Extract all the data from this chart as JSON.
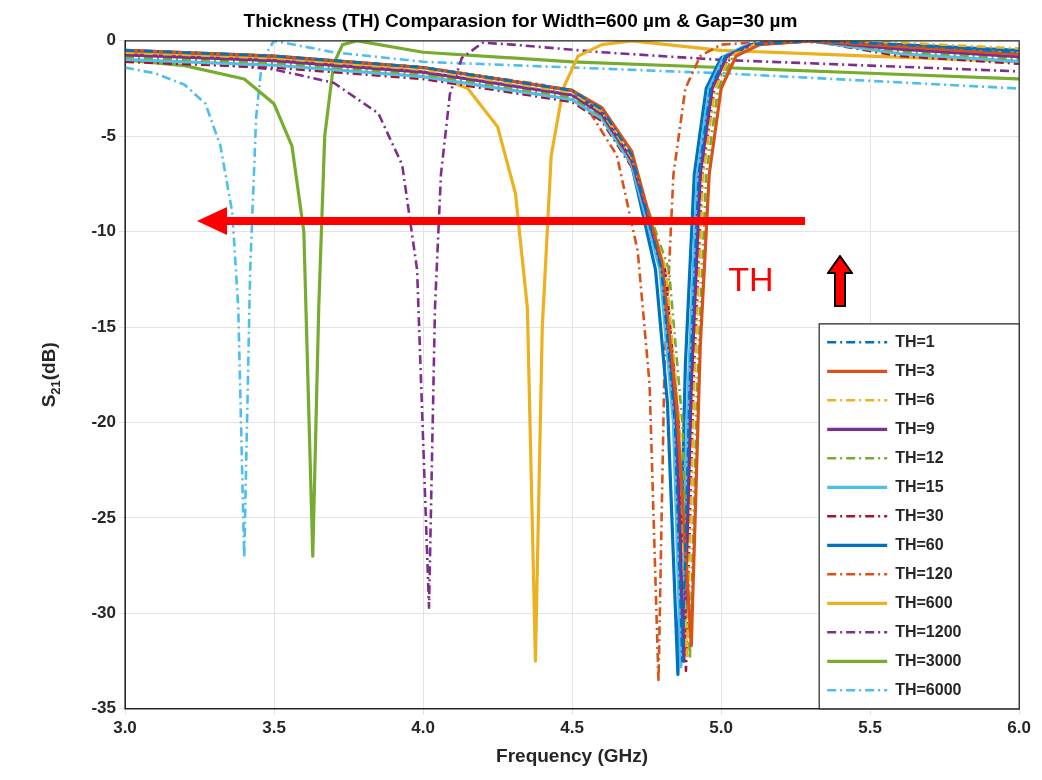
{
  "chart_data": {
    "type": "line",
    "title": "Thickness (TH) Comparasion for Width=600 µm & Gap=30 µm",
    "xlabel": "Frequency (GHz)",
    "ylabel": "S$_{21}$(dB)",
    "xlim": [
      3,
      6
    ],
    "xticks": [
      {
        "value": 3,
        "label": "3.0"
      },
      {
        "value": 3.5,
        "label": "3.5"
      },
      {
        "value": 4,
        "label": "4.0"
      },
      {
        "value": 4.5,
        "label": "4.5"
      },
      {
        "value": 5,
        "label": "5.0"
      },
      {
        "value": 5.5,
        "label": "5.5"
      },
      {
        "value": 6,
        "label": "6.0"
      }
    ],
    "ylim": [
      -35,
      0
    ],
    "yticks": [
      -35,
      -30,
      -25,
      -20,
      -15,
      -10,
      -5,
      0
    ],
    "grid": true,
    "legend": "bottom right",
    "marker": "none",
    "annotations": [
      "TH"
    ],
    "series": [
      {
        "name": "TH=1",
        "color": "#0072bd",
        "line_style": "dashed",
        "x": [
          3.0,
          3.5,
          4.0,
          4.5,
          4.6,
          4.7,
          4.8,
          4.845,
          4.87,
          4.895,
          4.925,
          4.965,
          5.015,
          5.095,
          5.3,
          5.6,
          6.0
        ],
        "values": [
          -0.5,
          -0.8,
          -1.4,
          -2.6,
          -3.6,
          -6,
          -12,
          -20,
          -32.5,
          -18,
          -7,
          -2.5,
          -0.8,
          -0.2,
          0,
          -0.2,
          -0.6
        ]
      },
      {
        "name": "TH=3",
        "color": "#d95319",
        "line_style": "solid",
        "x": [
          3.0,
          3.5,
          4.0,
          4.5,
          4.6,
          4.7,
          4.8,
          4.85,
          4.9,
          4.93,
          4.96,
          5.0,
          5.05,
          5.13,
          5.3,
          5.6,
          6.0
        ],
        "values": [
          -0.5,
          -0.8,
          -1.4,
          -2.6,
          -3.5,
          -5.8,
          -11.5,
          -19,
          -31.7,
          -16,
          -7,
          -2.5,
          -0.8,
          -0.2,
          0,
          -0.3,
          -0.7
        ]
      },
      {
        "name": "TH=6",
        "color": "#edb120",
        "line_style": "dashed",
        "x": [
          3.0,
          3.5,
          4.0,
          4.5,
          4.6,
          4.7,
          4.815,
          4.86,
          4.885,
          4.91,
          4.94,
          4.98,
          5.03,
          5.11,
          5.3,
          5.6,
          6.0
        ],
        "values": [
          -0.62,
          -0.92,
          -1.52,
          -2.72,
          -3.72,
          -6.12,
          -12,
          -20,
          -32.3,
          -18,
          -7,
          -2.5,
          -0.8,
          -0.2,
          0,
          -0.1,
          -0.4
        ]
      },
      {
        "name": "TH=9",
        "color": "#7e2f8e",
        "line_style": "solid",
        "x": [
          3.0,
          3.5,
          4.0,
          4.5,
          4.6,
          4.7,
          4.805,
          4.85,
          4.875,
          4.9,
          4.93,
          4.97,
          5.02,
          5.1,
          5.3,
          5.6,
          6.0
        ],
        "values": [
          -0.74,
          -1.04,
          -1.64,
          -2.84,
          -3.84,
          -6.24,
          -12,
          -20,
          -32.5,
          -18,
          -7,
          -2.5,
          -0.8,
          -0.2,
          0,
          -0.44,
          -0.84
        ]
      },
      {
        "name": "TH=12",
        "color": "#77ac30",
        "line_style": "dashed",
        "x": [
          3.0,
          3.5,
          4.0,
          4.5,
          4.6,
          4.7,
          4.825,
          4.87,
          4.895,
          4.92,
          4.95,
          4.99,
          5.04,
          5.12,
          5.3,
          5.6,
          6.0
        ],
        "values": [
          -0.86,
          -1.16,
          -1.76,
          -2.96,
          -3.96,
          -6.36,
          -12,
          -20,
          -32.4,
          -18,
          -7,
          -2.5,
          -0.8,
          -0.2,
          0,
          -0.56,
          -0.96
        ]
      },
      {
        "name": "TH=15",
        "color": "#4dbeee",
        "line_style": "solid",
        "x": [
          3.0,
          3.5,
          4.0,
          4.5,
          4.6,
          4.7,
          4.795,
          4.84,
          4.865,
          4.89,
          4.92,
          4.96,
          5.01,
          5.09,
          5.3,
          5.6,
          6.0
        ],
        "values": [
          -0.98,
          -1.28,
          -1.88,
          -3.08,
          -4.08,
          -6.48,
          -12,
          -20,
          -32.8,
          -18,
          -7,
          -2.5,
          -0.8,
          -0.2,
          0,
          -0.68,
          -1.08
        ]
      },
      {
        "name": "TH=30",
        "color": "#a2142f",
        "line_style": "dashed",
        "x": [
          3.0,
          3.5,
          4.0,
          4.5,
          4.6,
          4.7,
          4.812,
          4.857,
          4.882,
          4.907,
          4.937,
          4.977,
          5.027,
          5.107,
          5.3,
          5.6,
          6.0
        ],
        "values": [
          -1.1,
          -1.4,
          -2.0,
          -3.2,
          -4.2,
          -6.6,
          -12,
          -20,
          -33,
          -18,
          -7,
          -2.5,
          -0.8,
          -0.2,
          0,
          -0.8,
          -1.2
        ]
      },
      {
        "name": "TH=60",
        "color": "#0072bd",
        "line_style": "solid",
        "x": [
          3.0,
          3.5,
          4.0,
          4.5,
          4.6,
          4.7,
          4.78,
          4.82,
          4.855,
          4.88,
          4.91,
          4.95,
          5.0,
          5.1,
          5.3,
          5.6,
          6.0
        ],
        "values": [
          -0.5,
          -0.8,
          -1.4,
          -2.6,
          -3.8,
          -6.5,
          -12,
          -19,
          -33.2,
          -17,
          -7,
          -2.5,
          -0.9,
          -0.2,
          0,
          -0.2,
          -0.5
        ]
      },
      {
        "name": "TH=120",
        "color": "#d95319",
        "line_style": "dashed",
        "x": [
          3.0,
          3.5,
          4.0,
          4.4,
          4.55,
          4.65,
          4.72,
          4.76,
          4.79,
          4.81,
          4.84,
          4.88,
          4.93,
          5.0,
          5.2,
          5.6,
          6.0
        ],
        "values": [
          -0.5,
          -0.8,
          -1.4,
          -2.3,
          -3.5,
          -6,
          -11,
          -18,
          -33.6,
          -17,
          -7,
          -2.5,
          -0.8,
          -0.2,
          0,
          -0.3,
          -0.7
        ]
      },
      {
        "name": "TH=600",
        "color": "#edb120",
        "line_style": "solid",
        "x": [
          3.0,
          3.5,
          4.0,
          4.15,
          4.25,
          4.31,
          4.35,
          4.377,
          4.4,
          4.43,
          4.47,
          4.52,
          4.6,
          4.7,
          5.0,
          5.5,
          6.0
        ],
        "values": [
          -0.6,
          -0.9,
          -1.6,
          -2.5,
          -4.5,
          -8,
          -14,
          -32.5,
          -15,
          -6,
          -2.5,
          -0.8,
          -0.2,
          0,
          -0.5,
          -0.8,
          -1.1
        ]
      },
      {
        "name": "TH=1200",
        "color": "#7e2f8e",
        "line_style": "dashed",
        "x": [
          3.0,
          3.5,
          3.7,
          3.85,
          3.93,
          3.98,
          4.02,
          4.04,
          4.06,
          4.09,
          4.13,
          4.2,
          4.3,
          4.6,
          5.0,
          5.5,
          6.0
        ],
        "values": [
          -0.8,
          -1.5,
          -2.2,
          -3.8,
          -6.5,
          -12,
          -29.7,
          -14,
          -7,
          -2.8,
          -0.9,
          -0.1,
          -0.2,
          -0.6,
          -1.0,
          -1.3,
          -1.6
        ]
      },
      {
        "name": "TH=3000",
        "color": "#77ac30",
        "line_style": "solid",
        "x": [
          3.0,
          3.2,
          3.4,
          3.5,
          3.56,
          3.6,
          3.63,
          3.65,
          3.67,
          3.7,
          3.73,
          3.78,
          4.0,
          4.5,
          5.0,
          5.5,
          6.0
        ],
        "values": [
          -1.0,
          -1.3,
          -2,
          -3.3,
          -5.5,
          -10,
          -27,
          -14,
          -5,
          -1.2,
          -0.2,
          0,
          -0.6,
          -1.1,
          -1.4,
          -1.7,
          -2.0
        ]
      },
      {
        "name": "TH=6000",
        "color": "#4dbeee",
        "line_style": "dashed",
        "x": [
          3.0,
          3.1,
          3.2,
          3.27,
          3.32,
          3.36,
          3.38,
          3.4,
          3.42,
          3.44,
          3.46,
          3.5,
          3.7,
          4.0,
          5.0,
          5.5,
          6.0
        ],
        "values": [
          -1.4,
          -1.7,
          -2.3,
          -3.3,
          -5.5,
          -9,
          -14,
          -27.1,
          -12,
          -4,
          -1,
          0,
          -0.6,
          -1.1,
          -1.7,
          -2.1,
          -2.5
        ]
      }
    ]
  }
}
